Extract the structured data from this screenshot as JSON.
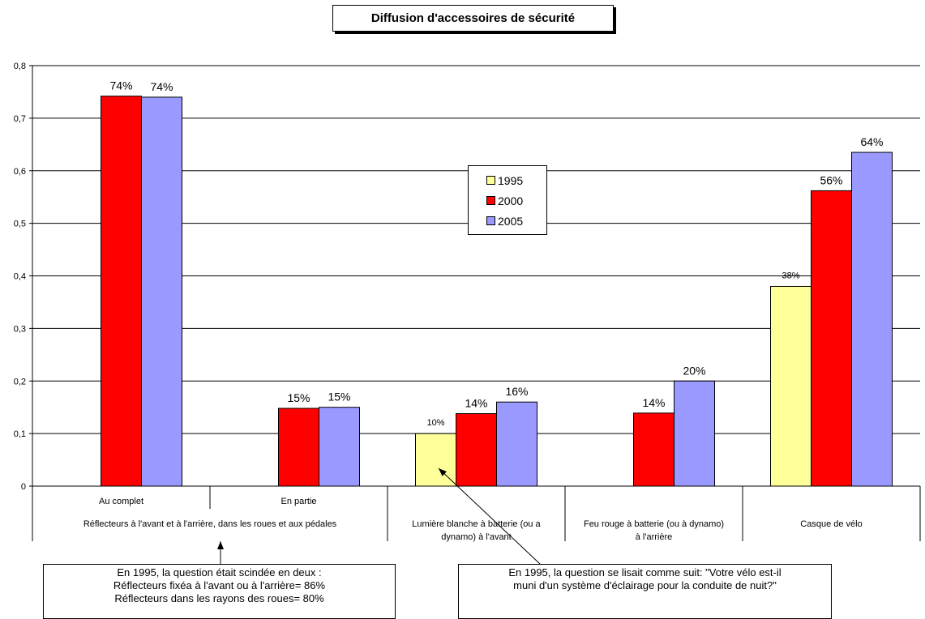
{
  "colors": {
    "1995": "#ffff99",
    "2000": "#ff0000",
    "2005": "#9999ff",
    "grid": "#000000"
  },
  "chart_data": {
    "type": "bar",
    "title": "Diffusion d'accessoires de sécurité",
    "categories": [
      "Au complet",
      "En partie",
      "Lumière blanche à batterie (ou a dynamo) à l'avant",
      "Feu rouge à batterie (ou à dynamo) à l'arrière",
      "Casque de vélo"
    ],
    "category_lines": [
      [
        "Au complet"
      ],
      [
        "En partie"
      ],
      [
        "Lumière blanche à batterie (ou a",
        "dynamo) à l'avant"
      ],
      [
        "Feu rouge à batterie (ou à dynamo)",
        "à l'arrière"
      ],
      [
        "Casque de vélo"
      ]
    ],
    "group_label": "Réflecteurs à l'avant et à l'arrière, dans les roues et aux pédales",
    "series": [
      {
        "name": "1995",
        "values": [
          null,
          null,
          0.1,
          null,
          0.38
        ],
        "labels": [
          null,
          null,
          "10%",
          null,
          "38%"
        ]
      },
      {
        "name": "2000",
        "values": [
          0.742,
          0.148,
          0.138,
          0.139,
          0.562
        ],
        "labels": [
          "74%",
          "15%",
          "14%",
          "14%",
          "56%"
        ]
      },
      {
        "name": "2005",
        "values": [
          0.74,
          0.15,
          0.16,
          0.2,
          0.635
        ],
        "labels": [
          "74%",
          "15%",
          "16%",
          "20%",
          "64%"
        ]
      }
    ],
    "ylim": [
      0,
      0.8
    ],
    "yticks": [
      "0",
      "0,1",
      "0,2",
      "0,3",
      "0,4",
      "0,5",
      "0,6",
      "0,7",
      "0,8"
    ],
    "grid": true,
    "legend_position": "center"
  },
  "notes": {
    "left": [
      "En 1995, la question était scindée en deux :",
      "Réflecteurs fixéa à l'avant ou à l'arrière= 86%",
      "Réflecteurs dans les rayons des roues= 80%"
    ],
    "right": [
      "En 1995, la question se lisait comme suit: \"Votre vélo est-il",
      "muni d'un système d'éclairage pour la conduite de nuit?\""
    ]
  }
}
